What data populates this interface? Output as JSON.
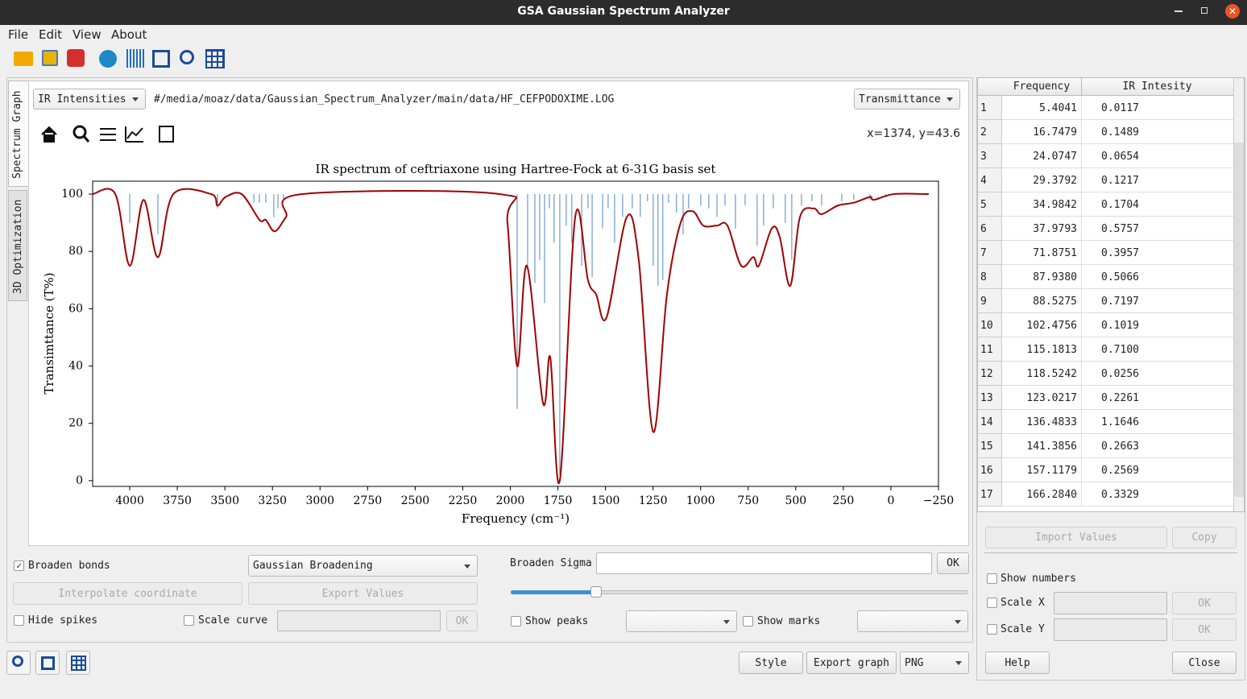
{
  "window": {
    "title": "GSA Gaussian Spectrum Analyzer"
  },
  "menu": [
    "File",
    "Edit",
    "View",
    "About"
  ],
  "tabs": [
    "Spectrum Graph",
    "3D Optimization"
  ],
  "graph_panel": {
    "spectrum_type": "IR Intensities",
    "file_path": "#/media/moaz/data/Gaussian_Spectrum_Analyzer/main/data/HF_CEFPODOXIME.LOG",
    "mode": "Transmittance",
    "cursor": "x=1374, y=43.6"
  },
  "chart_data": {
    "type": "line",
    "title": "IR spectrum of ceftriaxone using Hartree-Fock at 6-31G basis set",
    "x_label": "Frequency (cm⁻¹)",
    "y_label": "Transimttance (T%)",
    "xlim": [
      4195,
      -250
    ],
    "ylim": [
      -2,
      104.5
    ],
    "xticks": [
      4000,
      3750,
      3500,
      3250,
      3000,
      2750,
      2500,
      2250,
      2000,
      1750,
      1500,
      1250,
      1000,
      750,
      500,
      250,
      0,
      {
        "value": -250,
        "label": "−250"
      }
    ],
    "yticks": [
      0,
      20,
      40,
      60,
      80,
      100
    ],
    "curve": {
      "color": "#a00000",
      "x": [
        4195,
        4076,
        4000,
        3928,
        3852,
        3771,
        3572,
        3539,
        3496,
        3412,
        3318,
        3285,
        3238,
        3179,
        3094,
        2057,
        2015,
        1964,
        1913,
        1828,
        1790,
        1740,
        1659,
        1592,
        1549,
        1494,
        1388,
        1325,
        1249,
        1177,
        1105,
        1041,
        986,
        914,
        859,
        787,
        723,
        694,
        626,
        584,
        529,
        478,
        406,
        364,
        279,
        195,
        110,
        89,
        -17,
        -199
      ],
      "values": [
        100,
        100,
        75,
        98,
        78,
        100,
        100,
        96,
        99,
        100,
        91,
        91,
        87,
        92,
        100,
        100,
        90,
        40,
        75,
        27,
        43,
        0,
        92,
        70,
        65,
        57,
        92,
        77,
        17,
        65,
        90,
        94,
        89,
        89,
        89,
        75,
        78,
        75,
        88,
        85,
        68,
        92,
        95,
        93,
        96,
        97,
        99,
        98,
        100,
        100
      ]
    },
    "spikes": {
      "color": "#6a9ad0",
      "baseline": 100,
      "x": [
        4000,
        3852,
        3539,
        3348,
        3319,
        3285,
        3243,
        3221,
        3192,
        1964,
        1909,
        1871,
        1846,
        1820,
        1795,
        1770,
        1740,
        1706,
        1677,
        1625,
        1592,
        1570,
        1515,
        1486,
        1452,
        1410,
        1359,
        1317,
        1279,
        1249,
        1224,
        1199,
        1169,
        1127,
        1092,
        1063,
        999,
        957,
        914,
        872,
        817,
        766,
        703,
        669,
        618,
        555,
        521,
        470,
        415,
        364,
        258,
        195,
        110,
        26
      ],
      "values": [
        90,
        86,
        95,
        97,
        97,
        97,
        92,
        95,
        98,
        25,
        75,
        69,
        77,
        62,
        95,
        83,
        2,
        89,
        83,
        75,
        95,
        71,
        88,
        95,
        83,
        92,
        95,
        92,
        97.5,
        75,
        68,
        70,
        97,
        93.5,
        86,
        95,
        96,
        95,
        92,
        96,
        88,
        96,
        82,
        89,
        95,
        90,
        77,
        96,
        97.5,
        96,
        97.5,
        98,
        98,
        99
      ]
    }
  },
  "controls": {
    "broaden_bonds": "Broaden bonds",
    "broadening": "Gaussian Broadening",
    "broaden_sigma": "Broaden Sigma",
    "sigma_ok": "OK",
    "interpolate": "Interpolate coordinate",
    "export_values": "Export Values",
    "hide_spikes": "Hide spikes",
    "scale_curve": "Scale curve",
    "scale_ok": "OK",
    "show_peaks": "Show peaks",
    "show_marks": "Show marks",
    "style": "Style",
    "export_graph": "Export graph",
    "format": "PNG"
  },
  "table": {
    "headers": [
      "Frequency",
      "IR Intesity"
    ],
    "rows": [
      [
        "1",
        "5.4041",
        "0.0117"
      ],
      [
        "2",
        "16.7479",
        "0.1489"
      ],
      [
        "3",
        "24.0747",
        "0.0654"
      ],
      [
        "4",
        "29.3792",
        "0.1217"
      ],
      [
        "5",
        "34.9842",
        "0.1704"
      ],
      [
        "6",
        "37.9793",
        "0.5757"
      ],
      [
        "7",
        "71.8751",
        "0.3957"
      ],
      [
        "8",
        "87.9380",
        "0.5066"
      ],
      [
        "9",
        "88.5275",
        "0.7197"
      ],
      [
        "10",
        "102.4756",
        "0.1019"
      ],
      [
        "11",
        "115.1813",
        "0.7100"
      ],
      [
        "12",
        "118.5242",
        "0.0256"
      ],
      [
        "13",
        "123.0217",
        "0.2261"
      ],
      [
        "14",
        "136.4833",
        "1.1646"
      ],
      [
        "15",
        "141.3856",
        "0.2663"
      ],
      [
        "16",
        "157.1179",
        "0.2569"
      ],
      [
        "17",
        "166.2840",
        "0.3329"
      ]
    ]
  },
  "side": {
    "import_values": "Import Values",
    "copy": "Copy",
    "show_numbers": "Show numbers",
    "scale_x": "Scale X",
    "scale_x_ok": "OK",
    "scale_y": "Scale Y",
    "scale_y_ok": "OK",
    "help": "Help",
    "close": "Close"
  }
}
